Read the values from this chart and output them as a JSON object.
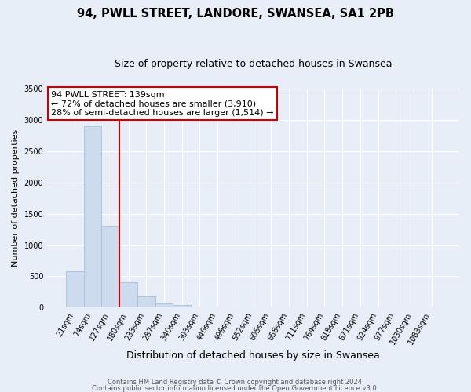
{
  "title": "94, PWLL STREET, LANDORE, SWANSEA, SA1 2PB",
  "subtitle": "Size of property relative to detached houses in Swansea",
  "xlabel": "Distribution of detached houses by size in Swansea",
  "ylabel": "Number of detached properties",
  "bar_labels": [
    "21sqm",
    "74sqm",
    "127sqm",
    "180sqm",
    "233sqm",
    "287sqm",
    "340sqm",
    "393sqm",
    "446sqm",
    "499sqm",
    "552sqm",
    "605sqm",
    "658sqm",
    "711sqm",
    "764sqm",
    "818sqm",
    "871sqm",
    "924sqm",
    "977sqm",
    "1030sqm",
    "1083sqm"
  ],
  "bar_values": [
    580,
    2900,
    1310,
    410,
    175,
    70,
    45,
    0,
    0,
    0,
    0,
    0,
    0,
    0,
    0,
    0,
    0,
    0,
    0,
    0,
    0
  ],
  "bar_color": "#ccdcee",
  "bar_edge_color": "#a8c0d8",
  "property_label": "94 PWLL STREET: 139sqm",
  "annotation_line1": "← 72% of detached houses are smaller (3,910)",
  "annotation_line2": "28% of semi-detached houses are larger (1,514) →",
  "vline_color": "#cc0000",
  "vline_x": 2.5,
  "ylim": [
    0,
    3500
  ],
  "yticks": [
    0,
    500,
    1000,
    1500,
    2000,
    2500,
    3000,
    3500
  ],
  "annotation_box_color": "#ffffff",
  "annotation_box_edge": "#cc0000",
  "footer_line1": "Contains HM Land Registry data © Crown copyright and database right 2024.",
  "footer_line2": "Contains public sector information licensed under the Open Government Licence v3.0.",
  "title_fontsize": 10.5,
  "subtitle_fontsize": 9,
  "xlabel_fontsize": 9,
  "ylabel_fontsize": 8,
  "tick_fontsize": 7,
  "annotation_fontsize": 8,
  "footer_fontsize": 6,
  "background_color": "#e8eef8"
}
